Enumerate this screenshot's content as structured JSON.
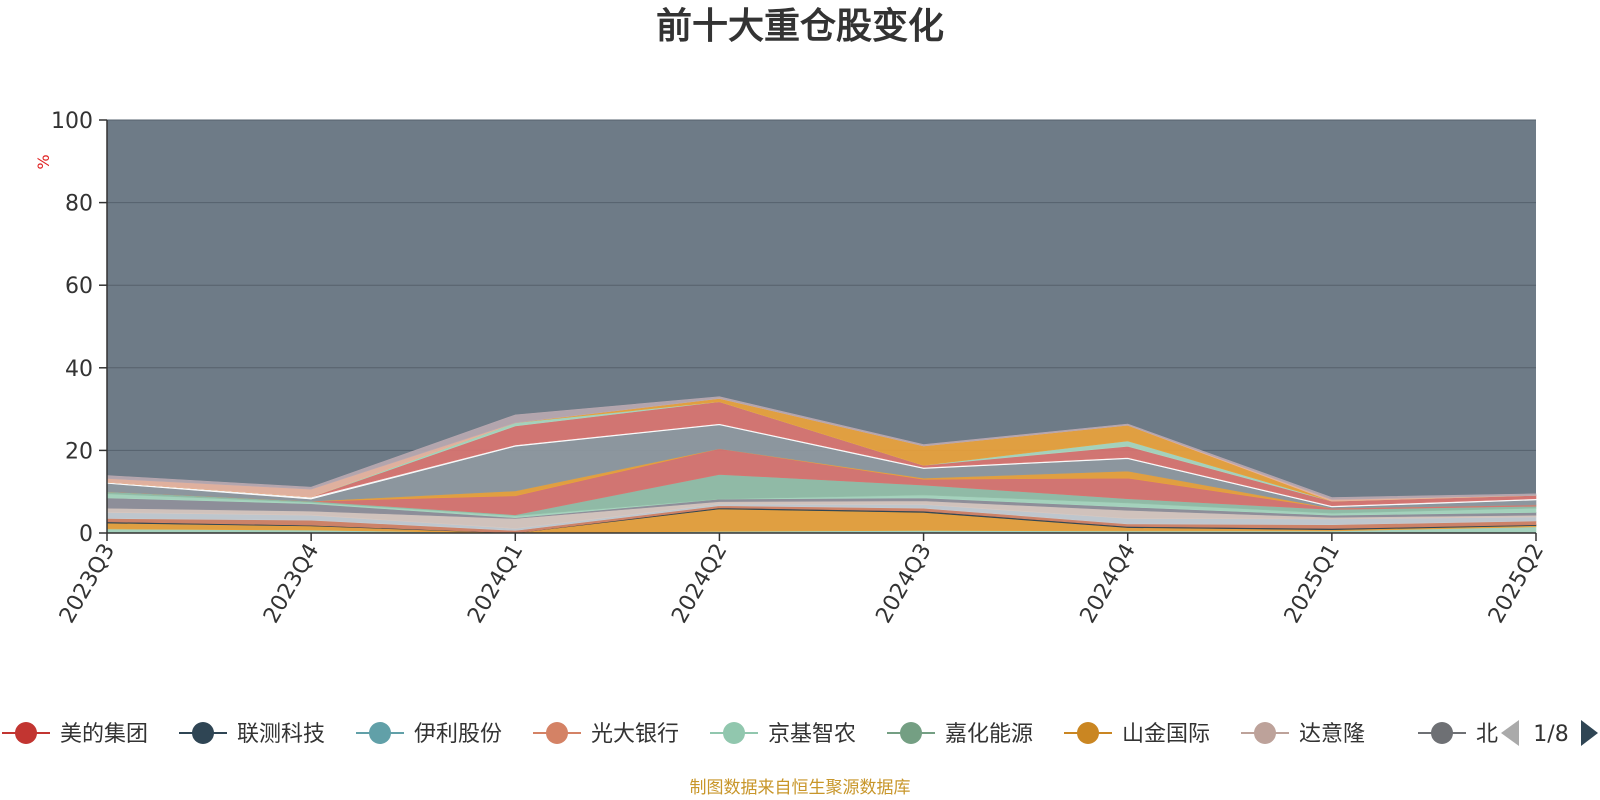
{
  "chart_data": {
    "type": "area",
    "title": "前十大重仓股变化",
    "ylabel": "%",
    "ylim": [
      0,
      100
    ],
    "yticks": [
      "0",
      "20",
      "40",
      "60",
      "80",
      "100"
    ],
    "categories": [
      "2023Q3",
      "2023Q4",
      "2024Q1",
      "2024Q2",
      "2024Q3",
      "2024Q4",
      "2025Q1",
      "2025Q2"
    ],
    "background_series": {
      "color": "#6e7b87",
      "value": 100
    },
    "bands": [
      {
        "color": "#a8d8c0",
        "values": [
          1.0,
          0.7,
          0.0,
          0.4,
          0.6,
          0.5,
          0.5,
          1.5
        ]
      },
      {
        "color": "#e9a23b",
        "values": [
          1.4,
          1.0,
          0.0,
          5.4,
          4.4,
          0.8,
          0.3,
          0.3
        ]
      },
      {
        "color": "#2f4554",
        "values": [
          0.3,
          0.2,
          0.0,
          0.3,
          0.3,
          0.3,
          0.3,
          0.2
        ]
      },
      {
        "color": "#d48265",
        "values": [
          0.8,
          1.2,
          0.6,
          0.5,
          0.7,
          0.6,
          0.9,
          0.9
        ]
      },
      {
        "color": "#c4ccd3",
        "values": [
          1.5,
          1.2,
          0.5,
          0.4,
          0.9,
          1.3,
          1.4,
          1.0
        ]
      },
      {
        "color": "#d8c8c0",
        "values": [
          1.0,
          1.0,
          2.4,
          0.6,
          0.9,
          2.0,
          0.4,
          0.4
        ]
      },
      {
        "color": "#8f8f9a",
        "values": [
          2.5,
          1.8,
          0.2,
          0.6,
          0.7,
          0.8,
          0.5,
          0.7
        ]
      },
      {
        "color": "#a8d8c0",
        "values": [
          1.0,
          0.3,
          0.5,
          0.0,
          0.7,
          1.0,
          0.5,
          1.0
        ]
      },
      {
        "color": "#93bfa8",
        "values": [
          0.5,
          0.3,
          0.2,
          6.0,
          2.4,
          1.0,
          0.9,
          0.5
        ]
      },
      {
        "color": "#d97470",
        "values": [
          0.0,
          0.0,
          4.6,
          6.2,
          1.4,
          5.0,
          0.3,
          0.3
        ]
      },
      {
        "color": "#e9a23b",
        "values": [
          0.0,
          0.0,
          1.2,
          0.0,
          0.3,
          1.7,
          0.0,
          0.0
        ]
      },
      {
        "color": "#8e989f",
        "values": [
          2.0,
          0.5,
          10.8,
          5.8,
          2.3,
          3.0,
          0.3,
          1.2
        ]
      },
      {
        "color": "#ffffff",
        "values": [
          0.3,
          0.5,
          0.3,
          0.3,
          0.3,
          0.3,
          0.3,
          0.3
        ]
      },
      {
        "color": "#d97470",
        "values": [
          0.0,
          0.0,
          4.6,
          5.3,
          0.5,
          2.7,
          1.1,
          0.8
        ]
      },
      {
        "color": "#a8d8c0",
        "values": [
          0.0,
          0.0,
          0.8,
          0.0,
          0.0,
          1.3,
          0.0,
          0.0
        ]
      },
      {
        "color": "#e9a23b",
        "values": [
          0.0,
          0.0,
          0.0,
          0.8,
          4.7,
          3.8,
          0.0,
          0.0
        ]
      },
      {
        "color": "#e8b4a0",
        "values": [
          0.9,
          1.9,
          0.0,
          0.0,
          0.0,
          0.0,
          0.4,
          0.0
        ]
      },
      {
        "color": "#b8a8b0",
        "values": [
          0.7,
          0.5,
          1.9,
          0.4,
          0.3,
          0.3,
          0.5,
          0.4
        ]
      }
    ]
  },
  "legend": {
    "items": [
      {
        "label": "美的集团",
        "color": "#c23531"
      },
      {
        "label": "联测科技",
        "color": "#2f4554"
      },
      {
        "label": "伊利股份",
        "color": "#61a0a8"
      },
      {
        "label": "光大银行",
        "color": "#d48265"
      },
      {
        "label": "京基智农",
        "color": "#91c7ae"
      },
      {
        "label": "嘉化能源",
        "color": "#749f83"
      },
      {
        "label": "山金国际",
        "color": "#ca8622"
      },
      {
        "label": "达意隆",
        "color": "#bda29a"
      },
      {
        "label": "北",
        "color": "#6e7074"
      }
    ],
    "page": "1/8"
  },
  "footer": "制图数据来自恒生聚源数据库"
}
